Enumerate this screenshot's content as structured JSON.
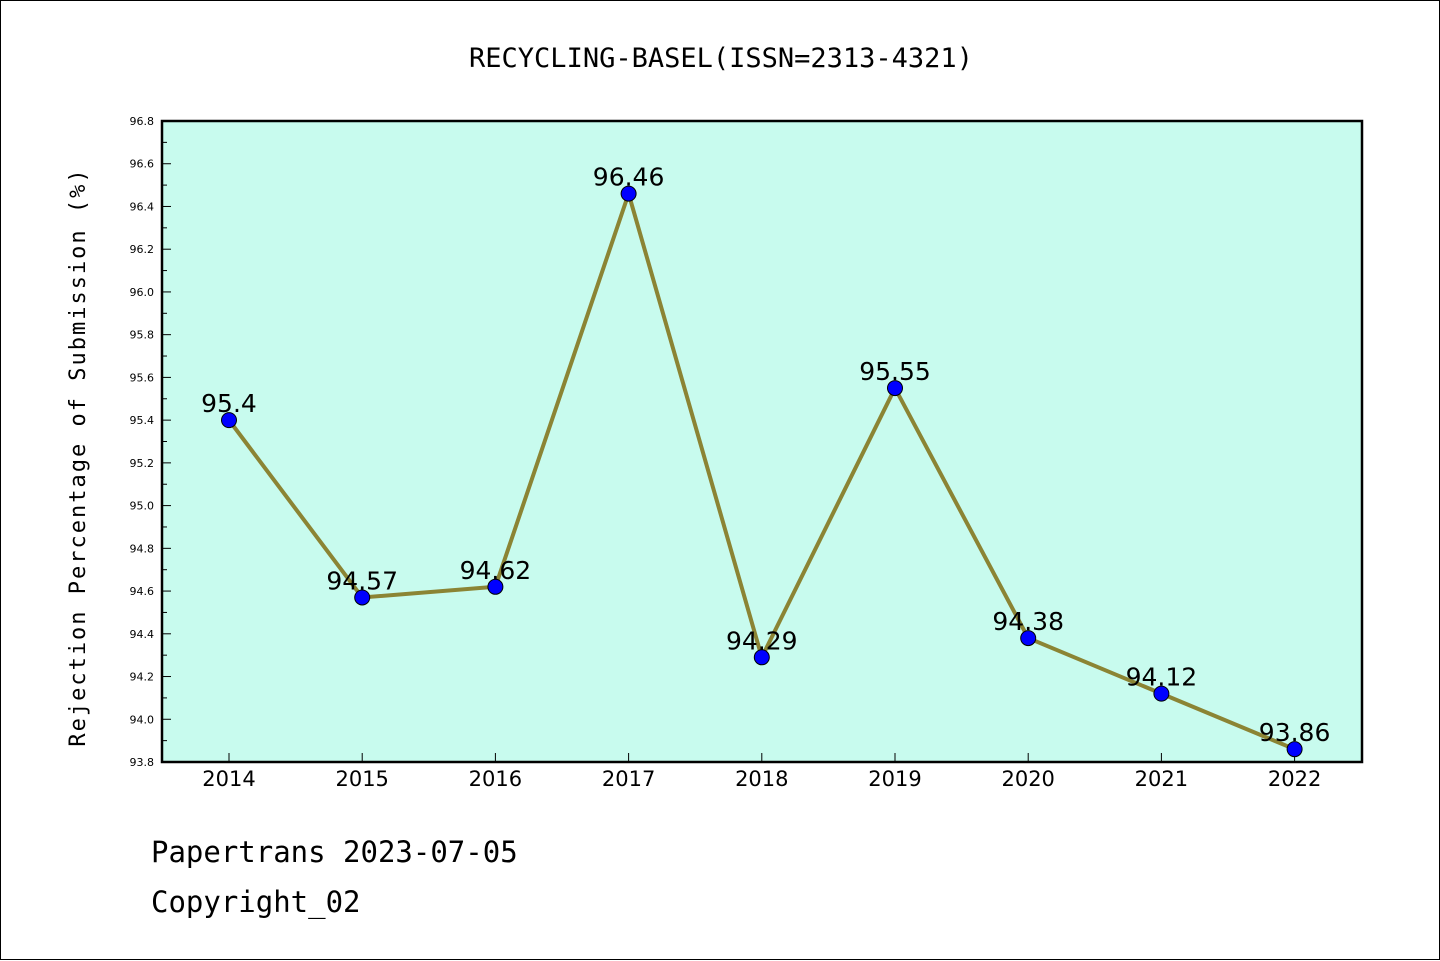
{
  "chart_data": {
    "type": "line",
    "title": "RECYCLING-BASEL(ISSN=2313-4321)",
    "ylabel": "Rejection Percentage of Submission (%)",
    "xlabel": "",
    "categories": [
      "2014",
      "2015",
      "2016",
      "2017",
      "2018",
      "2019",
      "2020",
      "2021",
      "2022"
    ],
    "values": [
      95.4,
      94.57,
      94.62,
      96.46,
      94.29,
      95.55,
      94.38,
      94.12,
      93.86
    ],
    "data_labels": [
      "95.4",
      "94.57",
      "94.62",
      "96.46",
      "94.29",
      "95.55",
      "94.38",
      "94.12",
      "93.86"
    ],
    "ylim": [
      93.8,
      96.8
    ],
    "yticks": [
      "93.8",
      "94.0",
      "94.2",
      "94.4",
      "94.6",
      "94.8",
      "95.0",
      "95.2",
      "95.4",
      "95.6",
      "95.8",
      "96.0",
      "96.2",
      "96.4",
      "96.6",
      "96.8"
    ],
    "grid": false,
    "colors": {
      "plot_background": "#c8fbee",
      "line": "#8b8434",
      "marker": "#0000ff"
    }
  },
  "footer": {
    "line1": "Papertrans 2023-07-05",
    "line2": "Copyright_02"
  }
}
